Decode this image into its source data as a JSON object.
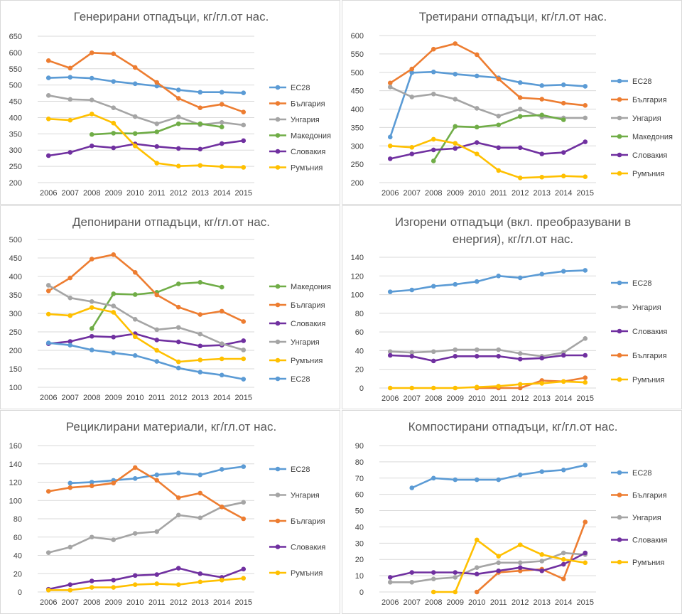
{
  "colors": {
    "ЕС28": "#5b9bd5",
    "България": "#ed7d31",
    "Унгария": "#a5a5a5",
    "Македония": "#70ad47",
    "Словакия": "#7030a0",
    "Румъния": "#ffc000"
  },
  "chart_data": [
    {
      "type": "line",
      "title": "Генерирани отпадъци, кг/гл.от нас.",
      "categories": [
        "2006",
        "2007",
        "2008",
        "2009",
        "2010",
        "2011",
        "2012",
        "2013",
        "2014",
        "2015"
      ],
      "ylim": [
        200,
        650
      ],
      "yticks": [
        200,
        250,
        300,
        350,
        400,
        450,
        500,
        550,
        600,
        650
      ],
      "grid": true,
      "legend": "right",
      "series": [
        {
          "name": "ЕС28",
          "values": [
            522,
            524,
            521,
            511,
            504,
            497,
            485,
            478,
            478,
            476
          ]
        },
        {
          "name": "България",
          "values": [
            575,
            552,
            599,
            596,
            554,
            508,
            459,
            430,
            441,
            417
          ]
        },
        {
          "name": "Унгария",
          "values": [
            468,
            456,
            454,
            430,
            403,
            381,
            402,
            378,
            385,
            377
          ]
        },
        {
          "name": "Македония",
          "values": [
            null,
            null,
            348,
            352,
            351,
            356,
            381,
            381,
            371,
            null
          ]
        },
        {
          "name": "Словакия",
          "values": [
            283,
            293,
            313,
            307,
            319,
            311,
            305,
            303,
            320,
            329
          ]
        },
        {
          "name": "Румъния",
          "values": [
            396,
            392,
            411,
            383,
            313,
            260,
            251,
            253,
            249,
            247
          ]
        }
      ]
    },
    {
      "type": "line",
      "title": "Третирани отпадъци, кг/гл.от нас.",
      "categories": [
        "2006",
        "2007",
        "2008",
        "2009",
        "2010",
        "2011",
        "2012",
        "2013",
        "2014",
        "2015"
      ],
      "ylim": [
        200,
        600
      ],
      "yticks": [
        200,
        250,
        300,
        350,
        400,
        450,
        500,
        550,
        600
      ],
      "grid": true,
      "legend": "right",
      "series": [
        {
          "name": "ЕС28",
          "values": [
            324,
            499,
            501,
            495,
            490,
            485,
            472,
            464,
            466,
            462
          ]
        },
        {
          "name": "България",
          "values": [
            471,
            509,
            563,
            578,
            548,
            482,
            431,
            427,
            416,
            410
          ]
        },
        {
          "name": "Унгария",
          "values": [
            460,
            433,
            441,
            427,
            402,
            381,
            400,
            378,
            376,
            376
          ]
        },
        {
          "name": "Македония",
          "values": [
            null,
            null,
            259,
            353,
            351,
            357,
            380,
            384,
            371,
            null
          ]
        },
        {
          "name": "Словакия",
          "values": [
            265,
            278,
            289,
            293,
            309,
            295,
            295,
            278,
            282,
            311
          ]
        },
        {
          "name": "Румъния",
          "values": [
            300,
            296,
            318,
            307,
            278,
            233,
            213,
            215,
            218,
            216
          ]
        }
      ]
    },
    {
      "type": "line",
      "title": "Депонирани отпадъци, кг/гл.от нас.",
      "categories": [
        "2006",
        "2007",
        "2008",
        "2009",
        "2010",
        "2011",
        "2012",
        "2013",
        "2014",
        "2015"
      ],
      "ylim": [
        100,
        500
      ],
      "yticks": [
        100,
        150,
        200,
        250,
        300,
        350,
        400,
        450,
        500
      ],
      "grid": true,
      "legend": "right",
      "series": [
        {
          "name": "Македония",
          "values": [
            null,
            null,
            259,
            353,
            351,
            357,
            380,
            384,
            371,
            null
          ]
        },
        {
          "name": "България",
          "values": [
            361,
            396,
            447,
            459,
            411,
            350,
            317,
            297,
            306,
            278
          ]
        },
        {
          "name": "Словакия",
          "values": [
            218,
            224,
            238,
            236,
            245,
            228,
            223,
            212,
            214,
            226
          ]
        },
        {
          "name": "Унгария",
          "values": [
            376,
            342,
            332,
            320,
            284,
            256,
            262,
            244,
            218,
            201
          ]
        },
        {
          "name": "Румъния",
          "values": [
            298,
            294,
            316,
            303,
            237,
            200,
            169,
            174,
            177,
            177
          ]
        },
        {
          "name": "ЕС28",
          "values": [
            220,
            214,
            201,
            193,
            186,
            170,
            152,
            141,
            133,
            122
          ]
        }
      ]
    },
    {
      "type": "line",
      "title_lines": [
        "Изгорени отпадъци (вкл. преобразувани в",
        "енергия), кг/гл.от нас."
      ],
      "categories": [
        "2006",
        "2007",
        "2008",
        "2009",
        "2010",
        "2011",
        "2012",
        "2013",
        "2014",
        "2015"
      ],
      "ylim": [
        0,
        140
      ],
      "yticks": [
        0,
        20,
        40,
        60,
        80,
        100,
        120,
        140
      ],
      "grid": true,
      "legend": "right",
      "series": [
        {
          "name": "ЕС28",
          "values": [
            103,
            105,
            109,
            111,
            114,
            120,
            118,
            122,
            125,
            126
          ]
        },
        {
          "name": "Унгария",
          "values": [
            39,
            38,
            39,
            41,
            41,
            41,
            37,
            34,
            38,
            53
          ]
        },
        {
          "name": "Словакия",
          "values": [
            35,
            34,
            29,
            34,
            34,
            34,
            31,
            32,
            35,
            35
          ]
        },
        {
          "name": "България",
          "values": [
            null,
            null,
            null,
            null,
            0,
            0,
            0,
            8,
            7,
            11
          ]
        },
        {
          "name": "Румъния",
          "values": [
            0,
            0,
            0,
            0,
            1,
            2,
            4,
            5,
            7,
            6
          ]
        }
      ]
    },
    {
      "type": "line",
      "title": "Рециклирани материали, кг/гл.от нас.",
      "categories": [
        "2006",
        "2007",
        "2008",
        "2009",
        "2010",
        "2011",
        "2012",
        "2013",
        "2014",
        "2015"
      ],
      "ylim": [
        0,
        160
      ],
      "yticks": [
        0,
        20,
        40,
        60,
        80,
        100,
        120,
        140,
        160
      ],
      "grid": true,
      "legend": "right",
      "series": [
        {
          "name": "ЕС28",
          "values": [
            null,
            119,
            120,
            122,
            124,
            128,
            130,
            128,
            134,
            137
          ]
        },
        {
          "name": "Унгария",
          "values": [
            43,
            49,
            60,
            57,
            64,
            66,
            84,
            81,
            93,
            98
          ]
        },
        {
          "name": "България",
          "values": [
            110,
            114,
            116,
            119,
            136,
            122,
            103,
            108,
            93,
            80
          ]
        },
        {
          "name": "Словакия",
          "values": [
            3,
            8,
            12,
            13,
            18,
            19,
            26,
            20,
            16,
            25
          ]
        },
        {
          "name": "Румъния",
          "values": [
            2,
            2,
            5,
            5,
            8,
            9,
            8,
            11,
            13,
            15
          ]
        }
      ]
    },
    {
      "type": "line",
      "title": "Компостирани отпадъци, кг/гл.от нас.",
      "categories": [
        "2006",
        "2007",
        "2008",
        "2009",
        "2010",
        "2011",
        "2012",
        "2013",
        "2014",
        "2015"
      ],
      "ylim": [
        0,
        90
      ],
      "yticks": [
        0,
        10,
        20,
        30,
        40,
        50,
        60,
        70,
        80,
        90
      ],
      "grid": true,
      "legend": "right",
      "series": [
        {
          "name": "ЕС28",
          "values": [
            null,
            64,
            70,
            69,
            69,
            69,
            72,
            74,
            75,
            78
          ]
        },
        {
          "name": "България",
          "values": [
            null,
            null,
            null,
            null,
            0,
            12,
            13,
            14,
            8,
            43
          ]
        },
        {
          "name": "Унгария",
          "values": [
            6,
            6,
            8,
            9,
            15,
            18,
            18,
            19,
            24,
            23
          ]
        },
        {
          "name": "Словакия",
          "values": [
            9,
            12,
            12,
            12,
            11,
            13,
            15,
            13,
            17,
            24
          ]
        },
        {
          "name": "Румъния",
          "values": [
            null,
            null,
            0,
            0,
            32,
            22,
            29,
            23,
            20,
            18
          ]
        }
      ]
    }
  ]
}
